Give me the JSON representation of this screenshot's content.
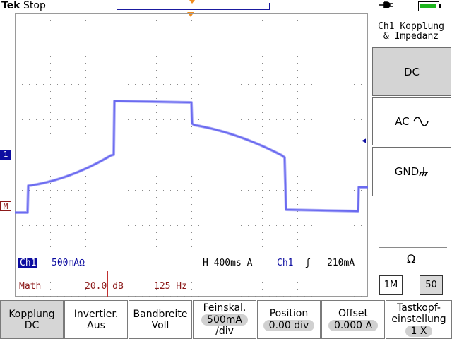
{
  "header": {
    "brand": "Tek",
    "run_state": "Stop",
    "power_icon": "plug-icon",
    "battery_icon": "battery-icon"
  },
  "markers": {
    "ch1": "1",
    "math": "M"
  },
  "readout": {
    "ch1_tag": "Ch1",
    "ch1_scale": "500mAΩ",
    "horizontal": "H 400ms  A",
    "trigger_source": "Ch1",
    "trigger_slope": "ʃ",
    "trigger_level": "210mA",
    "math_label": "Math",
    "math_scale": "20.0 dB",
    "math_freq": "125 Hz"
  },
  "side_menu": {
    "title_line1": "Ch1 Kopplung",
    "title_line2": "& Impedanz",
    "dc": "DC",
    "ac": "AC",
    "ac_icon": "sine-wave-icon",
    "gnd": "GND",
    "gnd_icon": "ground-icon",
    "impedance_label": "Ω",
    "imp_1m": "1M",
    "imp_50": "50"
  },
  "bottom_menu": {
    "kopplung_l1": "Kopplung",
    "kopplung_l2": "DC",
    "invert_l1": "Invertier.",
    "invert_l2": "Aus",
    "bandwidth_l1": "Bandbreite",
    "bandwidth_l2": "Voll",
    "fine_l1": "Feinskal.",
    "fine_l2": "500mA",
    "fine_l3": "/div",
    "position_l1": "Position",
    "position_l2": "0.00 div",
    "offset_l1": "Offset",
    "offset_l2": "0.000 A",
    "probe_l1": "Tastkopf-",
    "probe_l2": "einstellung",
    "probe_l3": "1 X"
  },
  "colors": {
    "trace": "#6b6bf0",
    "ch1": "#0c0ca0",
    "math": "#8c1a1a",
    "trigger_marker": "#f08c1e",
    "battery": "#1db51d"
  }
}
